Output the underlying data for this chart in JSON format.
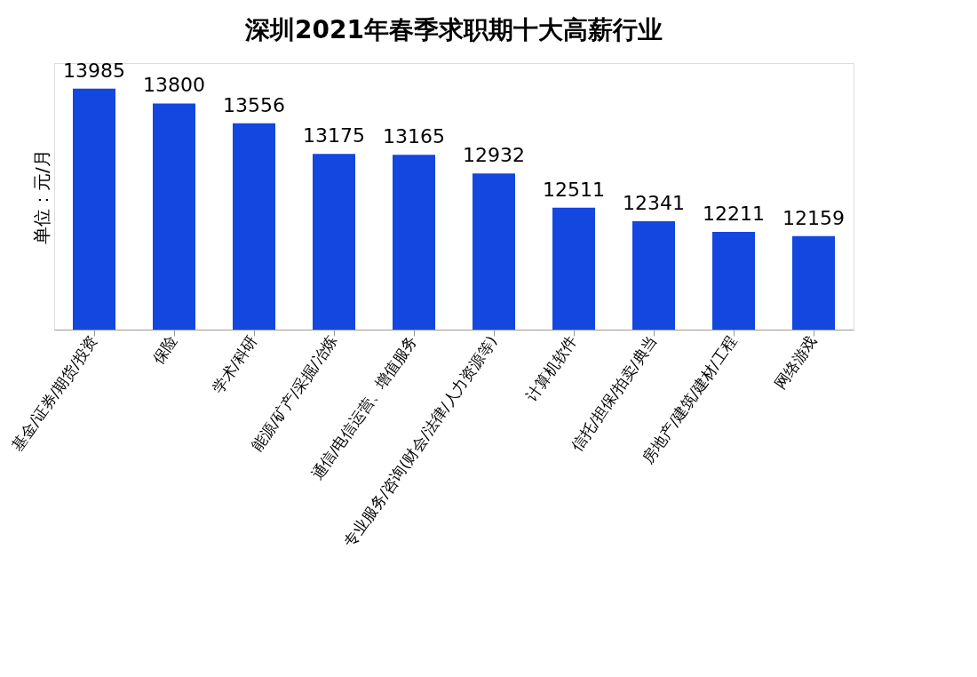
{
  "chart_data": {
    "type": "bar",
    "title": "深圳2021年春季求职期十大高薪行业",
    "ylabel": "单位：元/月",
    "categories": [
      "基金/证券/期货/投资",
      "保险",
      "学术/科研",
      "能源/矿产/采掘/冶炼",
      "通信/电信运营、增值服务",
      "专业服务/咨询(财会/法律/人力资源等)",
      "计算机软件",
      "信托/担保/拍卖/典当",
      "房地产/建筑/建材/工程",
      "网络游戏"
    ],
    "values": [
      13985,
      13800,
      13556,
      13175,
      13165,
      12932,
      12511,
      12341,
      12211,
      12159
    ],
    "color": "#1446e0",
    "ylim": [
      11000,
      14300
    ],
    "data_labels": true,
    "tick_labels": "x",
    "grid": false
  }
}
